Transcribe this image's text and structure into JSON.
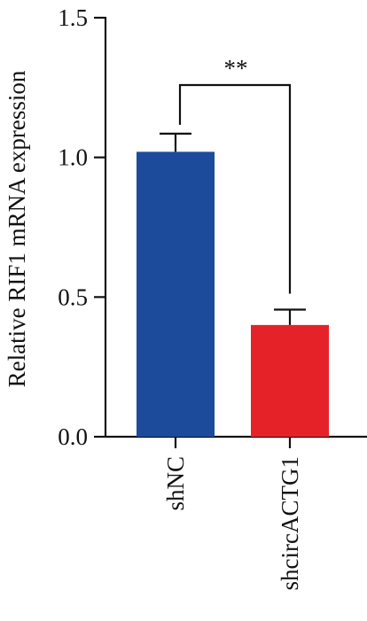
{
  "chart_data": {
    "type": "bar",
    "title": "",
    "xlabel": "",
    "ylabel": "Relative RIF1 mRNA expression",
    "ylim": [
      0,
      1.5
    ],
    "yticks": [
      0.0,
      0.5,
      1.0,
      1.5
    ],
    "ytick_labels": [
      "0.0",
      "0.5",
      "1.0",
      "1.5"
    ],
    "categories": [
      "shNC",
      "shcircACTG1"
    ],
    "values": [
      1.02,
      0.4
    ],
    "error": [
      0.065,
      0.055
    ],
    "colors": [
      "#1c4b9c",
      "#e52228"
    ],
    "significance": {
      "label": "**",
      "between": [
        0,
        1
      ]
    },
    "grid": false,
    "legend": "none"
  }
}
